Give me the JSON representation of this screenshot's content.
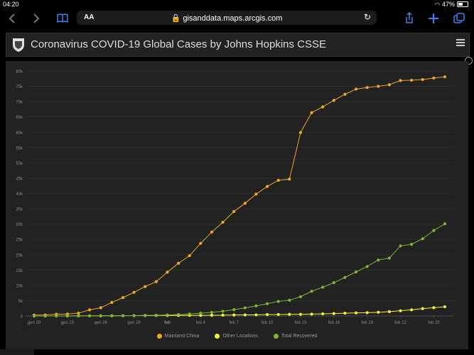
{
  "status": {
    "time": "04:20",
    "battery": "47%",
    "battery_level": 0.47
  },
  "toolbar": {
    "back_icon": "chevron-left-icon",
    "forward_icon": "chevron-right-icon",
    "bookmarks_icon": "book-icon",
    "text_size_label": "AA",
    "url": "gisanddata.maps.arcgis.com",
    "reload_icon": "reload-icon",
    "share_icon": "share-icon",
    "new_tab_icon": "plus-icon",
    "tabs_icon": "tabs-icon"
  },
  "header": {
    "title": "Coronavirus COVID-19 Global Cases by Johns Hopkins CSSE",
    "menu_icon": "hamburger-icon"
  },
  "colors": {
    "mainland": "#f5a623",
    "other": "#f3f335",
    "recovered": "#7cb82f",
    "panel": "#222222",
    "grid": "#333333"
  },
  "chart_data": {
    "type": "line",
    "x": [
      "gen 20",
      "gen 21",
      "gen 22",
      "gen 23",
      "gen 24",
      "gen 25",
      "gen 26",
      "gen 27",
      "gen 28",
      "gen 29",
      "gen 30",
      "gen 31",
      "feb 1",
      "feb 2",
      "feb 3",
      "feb 4",
      "feb 5",
      "feb 6",
      "feb 7",
      "feb 8",
      "feb 9",
      "feb 10",
      "feb 11",
      "feb 12",
      "feb 13",
      "feb 14",
      "feb 15",
      "feb 16",
      "feb 17",
      "feb 18",
      "feb 19",
      "feb 20",
      "feb 21",
      "feb 22",
      "feb 23",
      "feb 24",
      "feb 25",
      "feb 26"
    ],
    "xtick_labels": [
      "gen 20",
      "gen 23",
      "gen 26",
      "gen 29",
      "feb",
      "feb 4",
      "feb 7",
      "feb 10",
      "feb 13",
      "feb 16",
      "feb 19",
      "feb 22",
      "feb 25"
    ],
    "xtick_index": [
      0,
      3,
      6,
      9,
      12,
      15,
      18,
      21,
      24,
      27,
      30,
      33,
      36
    ],
    "ylim": [
      0,
      80000
    ],
    "yticks": [
      0,
      5000,
      10000,
      15000,
      20000,
      25000,
      30000,
      35000,
      40000,
      45000,
      50000,
      55000,
      60000,
      65000,
      70000,
      75000,
      80000
    ],
    "ytick_labels": [
      "0",
      "5k",
      "10k",
      "15k",
      "20k",
      "25k",
      "30k",
      "35k",
      "40k",
      "45k",
      "50k",
      "55k",
      "60k",
      "65k",
      "70k",
      "75k",
      "80k"
    ],
    "series": [
      {
        "name": "Mainland China",
        "color": "#f5a623",
        "values": [
          278,
          326,
          547,
          639,
          916,
          2000,
          2700,
          4400,
          6000,
          7700,
          9600,
          11200,
          14300,
          17200,
          19700,
          23700,
          27400,
          30600,
          34100,
          36800,
          39800,
          42300,
          44300,
          44700,
          59900,
          66400,
          68300,
          70400,
          72400,
          74100,
          74600,
          75000,
          75500,
          76900,
          77000,
          77200,
          77700,
          78100
        ]
      },
      {
        "name": "Other Locations",
        "color": "#f3f335",
        "values": [
          4,
          6,
          8,
          14,
          25,
          40,
          57,
          64,
          87,
          105,
          118,
          153,
          173,
          183,
          188,
          212,
          227,
          265,
          317,
          343,
          361,
          457,
          476,
          523,
          538,
          595,
          685,
          780,
          896,
          999,
          1073,
          1200,
          1400,
          1700,
          2000,
          2400,
          2700,
          3000
        ]
      },
      {
        "name": "Total Recovered",
        "color": "#7cb82f",
        "values": [
          0,
          0,
          0,
          28,
          30,
          36,
          39,
          60,
          103,
          124,
          171,
          243,
          328,
          475,
          632,
          892,
          1153,
          1540,
          2050,
          2649,
          3281,
          3996,
          4740,
          5150,
          6295,
          8058,
          9395,
          10865,
          12583,
          14376,
          16155,
          18264,
          18890,
          22886,
          23394,
          25227,
          27905,
          30095
        ]
      }
    ]
  },
  "legend": [
    "Mainland China",
    "Other Locations",
    "Total Recovered"
  ]
}
